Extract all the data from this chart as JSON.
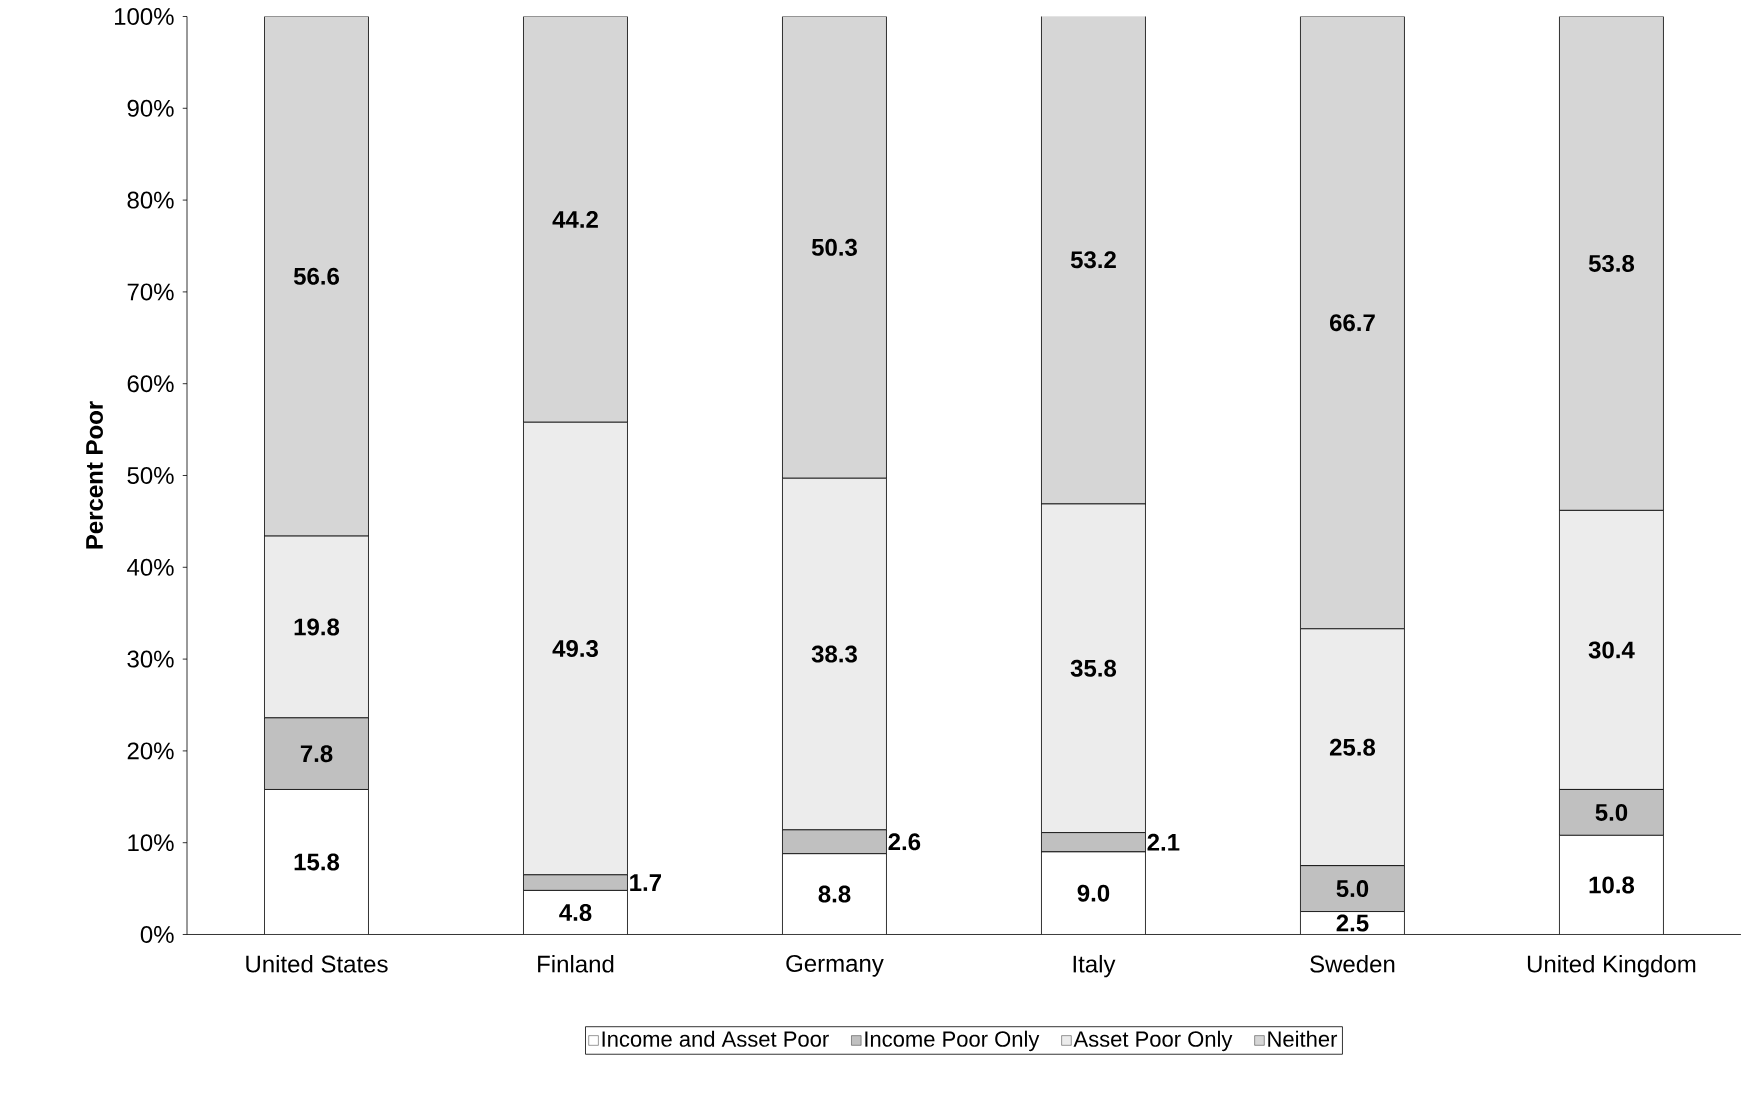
{
  "chart_data": {
    "type": "bar",
    "stacked": true,
    "ylabel": "Percent Poor",
    "categories": [
      "United States",
      "Finland",
      "Germany",
      "Italy",
      "Sweden",
      "United Kingdom"
    ],
    "series": [
      {
        "name": "Income and Asset Poor",
        "color": "#ffffff",
        "values": [
          15.8,
          4.8,
          8.8,
          9.0,
          2.5,
          10.8
        ],
        "value_labels": [
          "15.8",
          "4.8",
          "8.8",
          "9.0",
          "2.5",
          "10.8"
        ]
      },
      {
        "name": "Income Poor Only",
        "color": "#c0c0c0",
        "values": [
          7.8,
          1.7,
          2.6,
          2.1,
          5.0,
          5.0
        ],
        "value_labels": [
          "7.8",
          "1.7",
          "2.6",
          "2.1",
          "5.0",
          "5.0"
        ]
      },
      {
        "name": "Asset Poor Only",
        "color": "#ececec",
        "values": [
          19.8,
          49.3,
          38.3,
          35.8,
          25.8,
          30.4
        ],
        "value_labels": [
          "19.8",
          "49.3",
          "38.3",
          "35.8",
          "25.8",
          "30.4"
        ]
      },
      {
        "name": "Neither",
        "color": "#d6d6d6",
        "values": [
          56.6,
          44.2,
          50.3,
          53.2,
          66.7,
          53.8
        ],
        "value_labels": [
          "56.6",
          "44.2",
          "50.3",
          "53.2",
          "66.7",
          "53.8"
        ]
      }
    ],
    "ylim": [
      0,
      100
    ],
    "yticks": [
      {
        "value": 0,
        "label": "0%"
      },
      {
        "value": 10,
        "label": "10%"
      },
      {
        "value": 20,
        "label": "20%"
      },
      {
        "value": 30,
        "label": "30%"
      },
      {
        "value": 40,
        "label": "40%"
      },
      {
        "value": 50,
        "label": "50%"
      },
      {
        "value": 60,
        "label": "60%"
      },
      {
        "value": 70,
        "label": "70%"
      },
      {
        "value": 80,
        "label": "80%"
      },
      {
        "value": 90,
        "label": "90%"
      },
      {
        "value": 100,
        "label": "100%"
      }
    ],
    "grid": false,
    "legend": "bottom"
  }
}
